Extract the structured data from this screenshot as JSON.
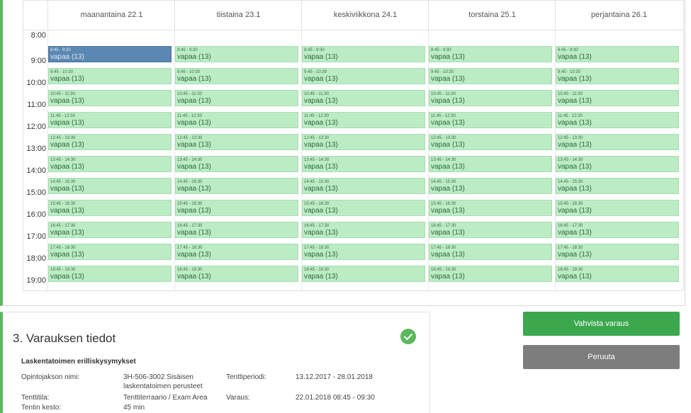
{
  "calendar": {
    "days": [
      "maanantaina 22.1",
      "tiistaina 23.1",
      "keskiviikkona 24.1",
      "torstaina 25.1",
      "perjantaina 26.1"
    ],
    "hours": [
      "8:00",
      "9:00",
      "10:00",
      "11:00",
      "12:00",
      "13:00",
      "14:00",
      "15:00",
      "16:00",
      "17:00",
      "18:00",
      "19:00"
    ],
    "slot_ranges": [
      "8:45 - 9:30",
      "9:45 - 10:30",
      "10:45 - 11:30",
      "11:45 - 12:30",
      "12:45 - 13:30",
      "13:45 - 14:30",
      "14:45 - 15:30",
      "15:45 - 16:30",
      "16:45 - 17:30",
      "17:45 - 18:30",
      "18:45 - 19:30"
    ],
    "slot_status": "vapaa (13)",
    "selected_day": 0,
    "selected_slot": 0
  },
  "reservation": {
    "title": "3. Varauksen tiedot",
    "course_title": "Laskentatoimen erilliskysymykset",
    "fields": {
      "course_name_label": "Opintojakson nimi:",
      "course_name_value_1": "3H-506-3002 Sisäisen",
      "course_name_value_2": "laskentatoimen perusteet",
      "exam_period_label": "Tenttiperiodi:",
      "exam_period_value": "13.12.2017 - 28.01.2018",
      "exam_room_label": "Tenttitila:",
      "exam_room_value": "Tenttiterraario / Exam Area",
      "booking_label": "Varaus:",
      "booking_value": "22.01.2018 08:45 - 09:30",
      "duration_label": "Tentin kesto:",
      "duration_value": "45 min"
    }
  },
  "buttons": {
    "confirm": "Vahvista varaus",
    "cancel": "Peruuta"
  },
  "colors": {
    "accent_green": "#5cb85c",
    "slot_free": "#bbecc4",
    "slot_selected": "#5b87b3",
    "cancel_gray": "#7d7d7d"
  }
}
